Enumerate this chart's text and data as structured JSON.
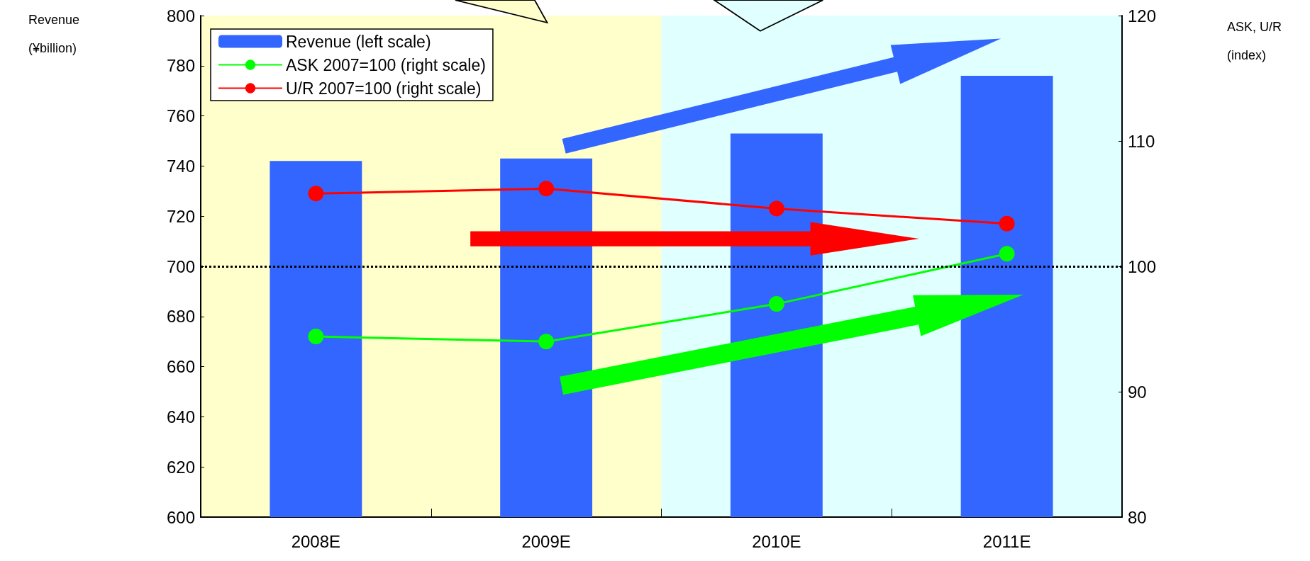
{
  "chart_data": {
    "type": "bar",
    "annotations": [
      "Revenue\n(¥billion)",
      "ASK, U/R\n(index)"
    ],
    "categories": [
      "2008E",
      "2009E",
      "2010E",
      "2011E"
    ],
    "series": [
      {
        "name": "Revenue (left scale)",
        "color": "#3366ff",
        "values": [
          742,
          743,
          753,
          776
        ]
      },
      {
        "name": "ASK 2007=100 (right scale)",
        "type": "line",
        "axis": "y2",
        "color": "#00ff00",
        "values": [
          94.4,
          94.0,
          97.0,
          101.0
        ]
      },
      {
        "name": "U/R 2007=100 (right scale)",
        "type": "line",
        "axis": "y2",
        "color": "#ff0000",
        "values": [
          105.8,
          106.2,
          104.6,
          103.4
        ]
      }
    ],
    "ylim": [
      600,
      800
    ],
    "yticks": [
      600,
      620,
      640,
      660,
      680,
      700,
      720,
      740,
      760,
      780,
      800
    ],
    "y2lim": [
      80,
      120
    ],
    "y2ticks": [
      80,
      90,
      100,
      110,
      120
    ],
    "ref_lines": [
      {
        "axis": "y2",
        "value": 100,
        "color": "#000000",
        "line_style": "dotted"
      }
    ],
    "bands": [
      {
        "axis": "x",
        "from": "2008E",
        "to": "2009E",
        "color": "#ffffcc"
      },
      {
        "axis": "x",
        "from": "2010E",
        "to": "2011E",
        "color": "#e0ffff"
      }
    ],
    "marker": "circle",
    "line_style": "solid",
    "legend": "top left",
    "grid": false
  }
}
